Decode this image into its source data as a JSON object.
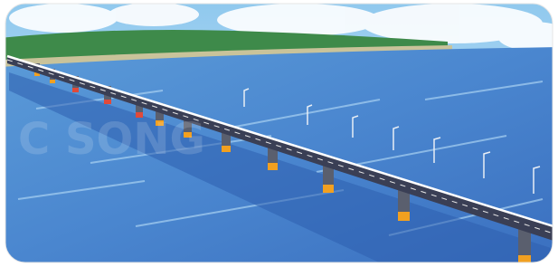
{
  "watermark": "C SONG"
}
